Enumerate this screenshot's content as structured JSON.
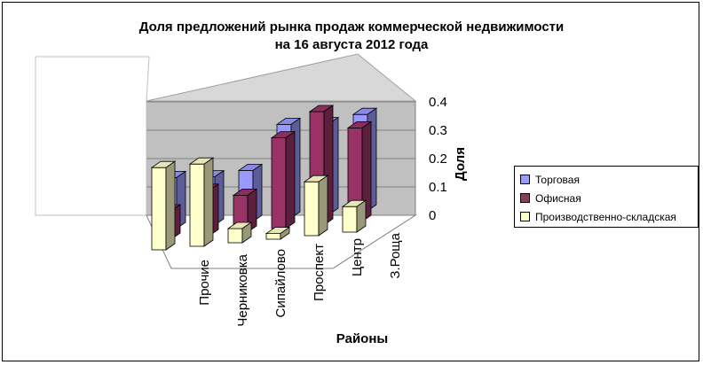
{
  "chart_data": {
    "type": "bar",
    "title_lines": [
      "Доля предложений рынка продаж коммерческой недвижимости",
      "на 16 августа 2012 года"
    ],
    "xlabel": "Районы",
    "ylabel": "Доля",
    "categories": [
      "Прочие",
      "Черниковка",
      "Сипайлово",
      "Проспект",
      "Центр",
      "З.Роща"
    ],
    "y_ticks": [
      "0",
      "0.1",
      "0.2",
      "0.3",
      "0.4"
    ],
    "ylim": [
      0,
      0.4
    ],
    "grid": true,
    "legend_position": "right",
    "series": [
      {
        "name": "Торговая",
        "color": "#9999ff",
        "values": [
          0.18,
          0.17,
          0.18,
          0.33,
          0.32,
          0.34
        ]
      },
      {
        "name": "Офисная",
        "color": "#993366",
        "values": [
          0.1,
          0.16,
          0.13,
          0.32,
          0.4,
          0.33
        ]
      },
      {
        "name": "Производственно-складская",
        "color": "#ffffcc",
        "values": [
          0.29,
          0.29,
          0.05,
          0.02,
          0.19,
          0.09
        ]
      }
    ]
  }
}
